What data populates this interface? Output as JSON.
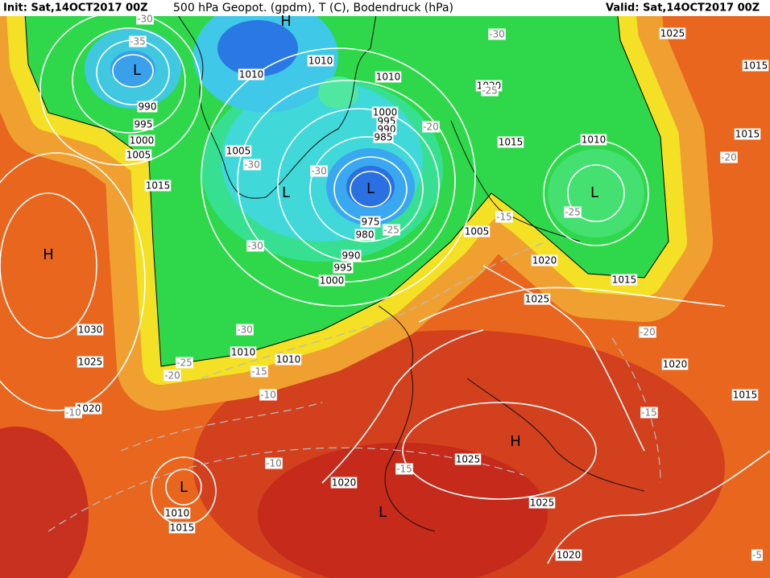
{
  "header": {
    "init": "Init: Sat,14OCT2017 00Z",
    "title": "500 hPa Geopot. (gpdm), T (C), Bodendruck (hPa)",
    "valid": "Valid: Sat,14OCT2017 00Z"
  },
  "centers": [
    "H",
    "L",
    "L",
    "L",
    "L",
    "L",
    "H",
    "H",
    "L"
  ],
  "isobar_labels": [
    "1025",
    "1015",
    "1015",
    "1010",
    "1010",
    "1010",
    "1020",
    "1015",
    "1010",
    "1000",
    "995",
    "990",
    "985",
    "990",
    "995",
    "1000",
    "1005",
    "1005",
    "1015",
    "975",
    "980",
    "990",
    "995",
    "1000",
    "1005",
    "1020",
    "1015",
    "1025",
    "1030",
    "1025",
    "1010",
    "1010",
    "1020",
    "1020",
    "1015",
    "1025",
    "1020",
    "1025",
    "1010",
    "1015",
    "1020"
  ],
  "temperature_labels": [
    "-30",
    "-35",
    "-30",
    "-25",
    "-20",
    "-20",
    "-30",
    "-30",
    "-25",
    "-15",
    "-25",
    "-30",
    "-30",
    "-25",
    "-20",
    "-15",
    "-10",
    "-10",
    "-20",
    "-15",
    "-10",
    "-15",
    "-5"
  ]
}
